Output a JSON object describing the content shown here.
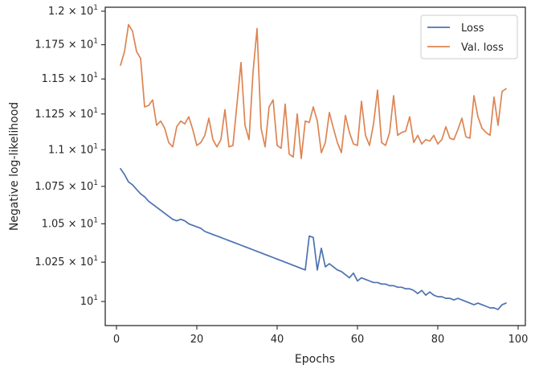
{
  "chart_data": {
    "type": "line",
    "xlabel": "Epochs",
    "ylabel": "Negative log-likelihood",
    "xlim": [
      -2.8,
      101.8
    ],
    "ylim": [
      9.85,
      12.03
    ],
    "y_scale": "log",
    "grid": false,
    "legend_placement": "top-right",
    "x_ticks": [
      {
        "value": 0,
        "label": "0"
      },
      {
        "value": 20,
        "label": "20"
      },
      {
        "value": 40,
        "label": "40"
      },
      {
        "value": 60,
        "label": "60"
      },
      {
        "value": 80,
        "label": "80"
      },
      {
        "value": 100,
        "label": "100"
      }
    ],
    "y_ticks": [
      {
        "value": 10.0,
        "mantissa": "",
        "exp": "1"
      },
      {
        "value": 10.25,
        "mantissa": "1.025",
        "exp": "1"
      },
      {
        "value": 10.5,
        "mantissa": "1.05",
        "exp": "1"
      },
      {
        "value": 10.75,
        "mantissa": "1.075",
        "exp": "1"
      },
      {
        "value": 11.0,
        "mantissa": "1.1",
        "exp": "1"
      },
      {
        "value": 11.25,
        "mantissa": "1.125",
        "exp": "1"
      },
      {
        "value": 11.5,
        "mantissa": "1.15",
        "exp": "1"
      },
      {
        "value": 11.75,
        "mantissa": "1.175",
        "exp": "1"
      },
      {
        "value": 12.0,
        "mantissa": "1.2",
        "exp": "1"
      }
    ],
    "x": [
      1,
      2,
      3,
      4,
      5,
      6,
      7,
      8,
      9,
      10,
      11,
      12,
      13,
      14,
      15,
      16,
      17,
      18,
      19,
      20,
      21,
      22,
      23,
      24,
      25,
      26,
      27,
      28,
      29,
      30,
      31,
      32,
      33,
      34,
      35,
      36,
      37,
      38,
      39,
      40,
      41,
      42,
      43,
      44,
      45,
      46,
      47,
      48,
      49,
      50,
      51,
      52,
      53,
      54,
      55,
      56,
      57,
      58,
      59,
      60,
      61,
      62,
      63,
      64,
      65,
      66,
      67,
      68,
      69,
      70,
      71,
      72,
      73,
      74,
      75,
      76,
      77,
      78,
      79,
      80,
      81,
      82,
      83,
      84,
      85,
      86,
      87,
      88,
      89,
      90,
      91,
      92,
      93,
      94,
      95,
      96,
      97
    ],
    "series": [
      {
        "name": "Loss",
        "color": "#4c72b0",
        "values": [
          10.87,
          10.83,
          10.78,
          10.76,
          10.73,
          10.7,
          10.68,
          10.65,
          10.63,
          10.61,
          10.59,
          10.57,
          10.55,
          10.53,
          10.52,
          10.53,
          10.52,
          10.5,
          10.49,
          10.48,
          10.47,
          10.45,
          10.44,
          10.43,
          10.42,
          10.41,
          10.4,
          10.39,
          10.38,
          10.37,
          10.36,
          10.35,
          10.34,
          10.33,
          10.32,
          10.31,
          10.3,
          10.29,
          10.28,
          10.27,
          10.26,
          10.25,
          10.24,
          10.23,
          10.22,
          10.21,
          10.2,
          10.42,
          10.41,
          10.2,
          10.34,
          10.22,
          10.24,
          10.22,
          10.2,
          10.19,
          10.17,
          10.15,
          10.18,
          10.13,
          10.15,
          10.14,
          10.13,
          10.12,
          10.12,
          10.11,
          10.11,
          10.1,
          10.1,
          10.09,
          10.09,
          10.08,
          10.08,
          10.07,
          10.05,
          10.07,
          10.04,
          10.06,
          10.04,
          10.03,
          10.03,
          10.02,
          10.02,
          10.01,
          10.02,
          10.01,
          10.0,
          9.99,
          9.98,
          9.99,
          9.98,
          9.97,
          9.96,
          9.96,
          9.95,
          9.98,
          9.99
        ]
      },
      {
        "name": "Val. loss",
        "color": "#dd8452",
        "values": [
          11.6,
          11.7,
          11.9,
          11.85,
          11.7,
          11.65,
          11.3,
          11.31,
          11.35,
          11.17,
          11.2,
          11.15,
          11.05,
          11.02,
          11.16,
          11.2,
          11.18,
          11.23,
          11.14,
          11.03,
          11.05,
          11.1,
          11.22,
          11.07,
          11.02,
          11.07,
          11.28,
          11.02,
          11.03,
          11.32,
          11.62,
          11.17,
          11.07,
          11.55,
          11.87,
          11.15,
          11.02,
          11.3,
          11.35,
          11.03,
          11.01,
          11.32,
          10.97,
          10.95,
          11.25,
          10.94,
          11.2,
          11.19,
          11.3,
          11.2,
          10.98,
          11.05,
          11.26,
          11.15,
          11.05,
          10.98,
          11.24,
          11.12,
          11.04,
          11.03,
          11.34,
          11.1,
          11.03,
          11.18,
          11.42,
          11.05,
          11.03,
          11.12,
          11.38,
          11.1,
          11.12,
          11.13,
          11.23,
          11.05,
          11.1,
          11.04,
          11.07,
          11.06,
          11.1,
          11.04,
          11.07,
          11.16,
          11.08,
          11.07,
          11.14,
          11.22,
          11.09,
          11.08,
          11.38,
          11.23,
          11.15,
          11.12,
          11.1,
          11.37,
          11.17,
          11.41,
          11.43
        ]
      }
    ]
  }
}
